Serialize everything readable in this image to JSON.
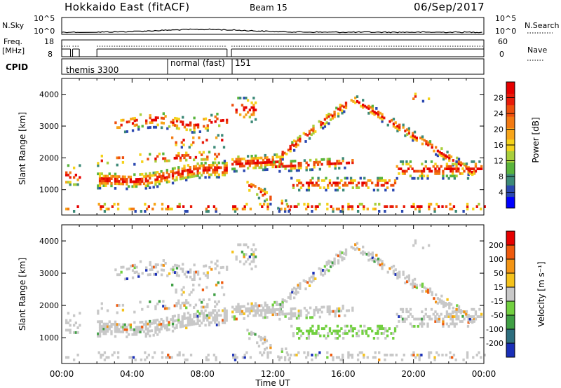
{
  "header": {
    "title": "Hokkaido East (fitACF)",
    "beam": "Beam 15",
    "date": "06/Sep/2017"
  },
  "noise_panel": {
    "left_label": "N.Sky",
    "right_label": "N.Search",
    "left_ticks": [
      "10^5",
      "10^0"
    ],
    "right_ticks": [
      "10^5",
      "10^0"
    ]
  },
  "freq_panel": {
    "left_label": "Freq.",
    "left_unit": "[MHz]",
    "left_ticks": [
      "18",
      "8"
    ],
    "right_label": "Nave",
    "right_ticks": [
      "60",
      "0"
    ]
  },
  "cpid_panel": {
    "label": "CPID",
    "modes": [
      {
        "name": "themis 3300",
        "start_hour": 0.0
      },
      {
        "name": "normal (fast)",
        "start_hour": 6.0
      },
      {
        "name": "151",
        "start_hour": 9.6
      }
    ]
  },
  "chart_data": [
    {
      "type": "heatmap",
      "name": "power",
      "ylabel": "Slant Range [km]",
      "ylim": [
        200,
        4500
      ],
      "yticks": [
        1000,
        2000,
        3000,
        4000
      ],
      "xlim": [
        0,
        24
      ],
      "colorbar": {
        "label": "Power [dB]",
        "ticks": [
          "28",
          "24",
          "20",
          "16",
          "12",
          "8",
          "4"
        ],
        "colors": [
          "#0000ff",
          "#2b48b0",
          "#3d8a78",
          "#59b43c",
          "#a9cf3c",
          "#f4d21a",
          "#f7a51a",
          "#f37a12",
          "#ee4f0d",
          "#e81c0a",
          "#e60000"
        ]
      }
    },
    {
      "type": "heatmap",
      "name": "velocity",
      "ylabel": "Slant Range [km]",
      "ylim": [
        200,
        4500
      ],
      "yticks": [
        1000,
        2000,
        3000,
        4000
      ],
      "xlim": [
        0,
        24
      ],
      "colorbar": {
        "label": "Velocity [m s⁻¹]",
        "ticks": [
          "200",
          "100",
          "50",
          "15",
          "-15",
          "-50",
          "-100",
          "-200"
        ],
        "colors": [
          "#1a2fb8",
          "#2d6e7e",
          "#3f9f44",
          "#72d040",
          "#c8c8c8",
          "#f5c21b",
          "#f39414",
          "#ef5a0d",
          "#e60000"
        ]
      }
    }
  ],
  "xaxis": {
    "label": "Time UT",
    "ticks": [
      "00:00",
      "04:00",
      "08:00",
      "12:00",
      "16:00",
      "20:00",
      "00:00"
    ]
  }
}
